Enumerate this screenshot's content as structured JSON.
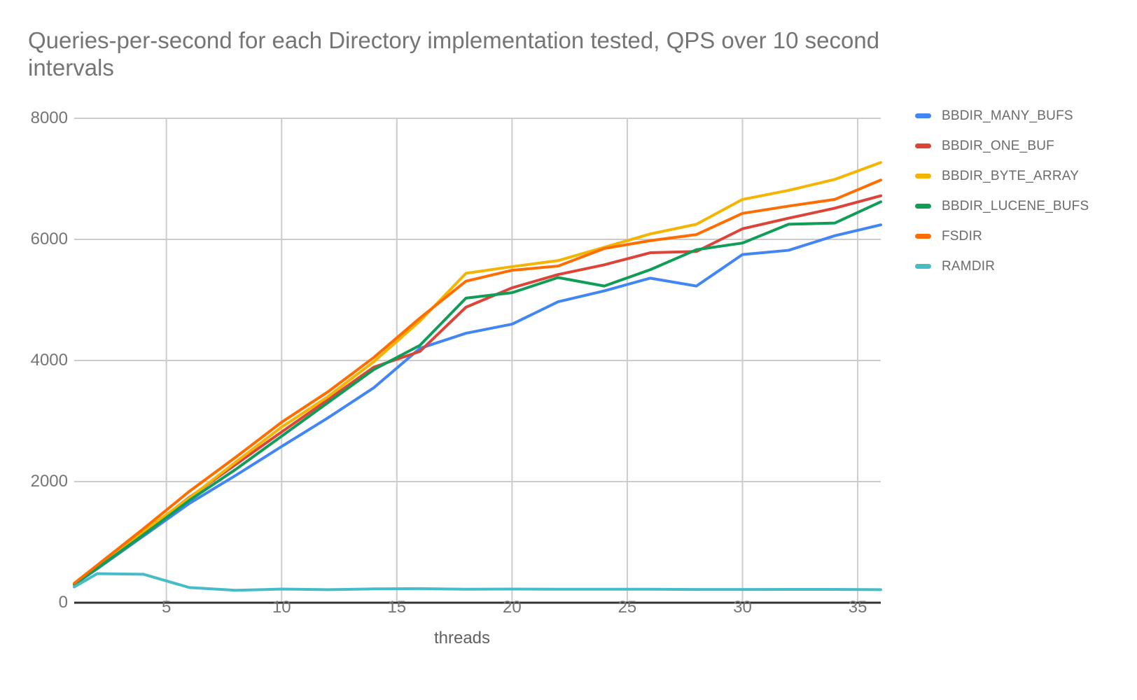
{
  "title": {
    "line1": "Queries-per-second for each Directory implementation tested, QPS over 10 second",
    "line2": "intervals"
  },
  "chart_data": {
    "type": "line",
    "title": "Queries-per-second for each Directory implementation tested, QPS over 10 second intervals",
    "xlabel": "threads",
    "ylabel": "",
    "xlim": [
      1,
      36
    ],
    "ylim": [
      0,
      8000
    ],
    "x_ticks": [
      5,
      10,
      15,
      20,
      25,
      30,
      35
    ],
    "y_ticks": [
      0,
      2000,
      4000,
      6000,
      8000
    ],
    "grid": true,
    "legend_position": "right",
    "x": [
      1,
      2,
      4,
      6,
      8,
      10,
      12,
      14,
      16,
      18,
      20,
      22,
      24,
      26,
      28,
      30,
      32,
      34,
      36
    ],
    "series": [
      {
        "name": "BBDIR_MANY_BUFS",
        "color": "#4285F4",
        "values": [
          300,
          560,
          1100,
          1640,
          2100,
          2580,
          3050,
          3550,
          4200,
          4450,
          4600,
          4970,
          5150,
          5360,
          5230,
          5750,
          5820,
          6060,
          6240
        ]
      },
      {
        "name": "BBDIR_ONE_BUF",
        "color": "#DB4437",
        "values": [
          310,
          590,
          1160,
          1740,
          2280,
          2820,
          3350,
          3890,
          4150,
          4880,
          5200,
          5420,
          5580,
          5780,
          5800,
          6175,
          6350,
          6515,
          6720
        ]
      },
      {
        "name": "BBDIR_BYTE_ARRAY",
        "color": "#F4B400",
        "values": [
          310,
          600,
          1180,
          1730,
          2320,
          2900,
          3400,
          3980,
          4650,
          5440,
          5550,
          5650,
          5870,
          6090,
          6250,
          6660,
          6810,
          6990,
          7270
        ]
      },
      {
        "name": "BBDIR_LUCENE_BUFS",
        "color": "#0F9D58",
        "values": [
          300,
          570,
          1120,
          1690,
          2200,
          2750,
          3300,
          3850,
          4250,
          5030,
          5120,
          5370,
          5230,
          5500,
          5830,
          5940,
          6250,
          6270,
          6620
        ]
      },
      {
        "name": "FSDIR",
        "color": "#FF6D01",
        "values": [
          320,
          620,
          1220,
          1840,
          2400,
          2980,
          3480,
          4050,
          4700,
          5310,
          5490,
          5560,
          5850,
          5980,
          6080,
          6430,
          6550,
          6660,
          6980
        ]
      },
      {
        "name": "RAMDIR",
        "color": "#46BDC6",
        "values": [
          260,
          480,
          470,
          250,
          205,
          225,
          215,
          228,
          232,
          222,
          225,
          222,
          222,
          222,
          218,
          218,
          220,
          220,
          215
        ]
      }
    ],
    "styles": {
      "gridline_color": "#cccccc",
      "axis_line_color": "#333333",
      "tick_label_color": "#757575",
      "title_color": "#757575"
    }
  }
}
